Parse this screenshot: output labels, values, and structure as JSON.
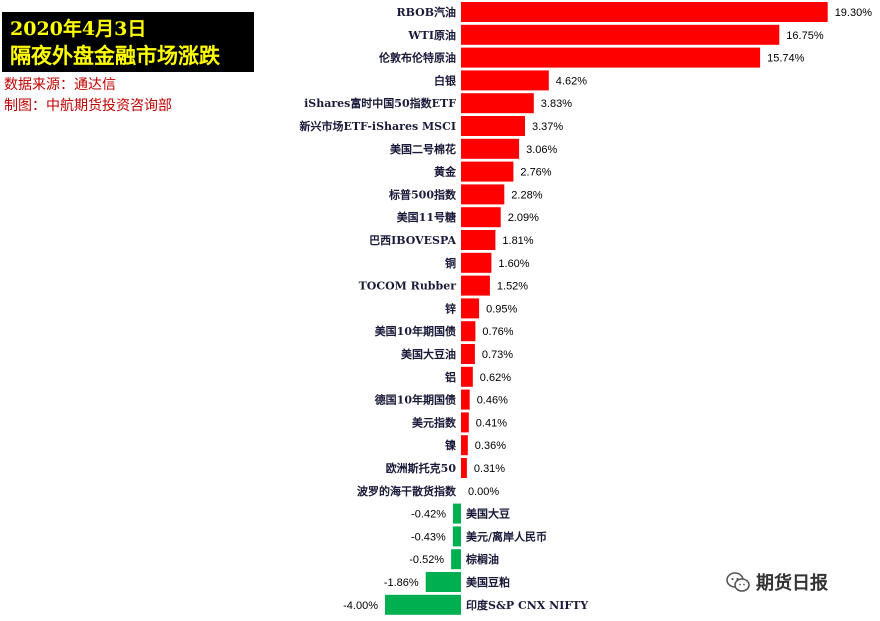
{
  "header": {
    "title_line1": "2020年4月3日",
    "title_line2": "隔夜外盘金融市场涨跌",
    "source": "数据来源：通达信",
    "maker": "制图：中航期货投资咨询部"
  },
  "watermark": {
    "text": "期货日报",
    "icon": "wechat-icon"
  },
  "colors": {
    "positive": "#ff0000",
    "negative": "#00b050",
    "title_bg": "#000000",
    "title_text": "#ffff00",
    "note_text": "#c00000"
  },
  "chart_data": {
    "type": "bar",
    "orientation": "horizontal",
    "unit": "%",
    "title": "",
    "xlabel": "",
    "ylabel": "",
    "grid": false,
    "legend": "none",
    "categories": [
      "RBOB汽油",
      "WTI原油",
      "伦敦布伦特原油",
      "白银",
      "iShares富时中国50指数ETF",
      "新兴市场ETF-iShares MSCI",
      "美国二号棉花",
      "黄金",
      "标普500指数",
      "美国11号糖",
      "巴西IBOVESPA",
      "铜",
      "TOCOM Rubber",
      "锌",
      "美国10年期国债",
      "美国大豆油",
      "铝",
      "德国10年期国债",
      "美元指数",
      "镍",
      "欧洲斯托克50",
      "波罗的海干散货指数",
      "美国大豆",
      "美元/离岸人民币",
      "棕榈油",
      "美国豆粕",
      "印度S&P CNX NIFTY"
    ],
    "values": [
      19.3,
      16.75,
      15.74,
      4.62,
      3.83,
      3.37,
      3.06,
      2.76,
      2.28,
      2.09,
      1.81,
      1.6,
      1.52,
      0.95,
      0.76,
      0.73,
      0.62,
      0.46,
      0.41,
      0.36,
      0.31,
      0.0,
      -0.42,
      -0.43,
      -0.52,
      -1.86,
      -4.0
    ],
    "value_labels": [
      "19.30%",
      "16.75%",
      "15.74%",
      "4.62%",
      "3.83%",
      "3.37%",
      "3.06%",
      "2.76%",
      "2.28%",
      "2.09%",
      "1.81%",
      "1.60%",
      "1.52%",
      "0.95%",
      "0.76%",
      "0.73%",
      "0.62%",
      "0.46%",
      "0.41%",
      "0.36%",
      "0.31%",
      "0.00%",
      "-0.42%",
      "-0.43%",
      "-0.52%",
      "-1.86%",
      "-4.00%"
    ]
  }
}
